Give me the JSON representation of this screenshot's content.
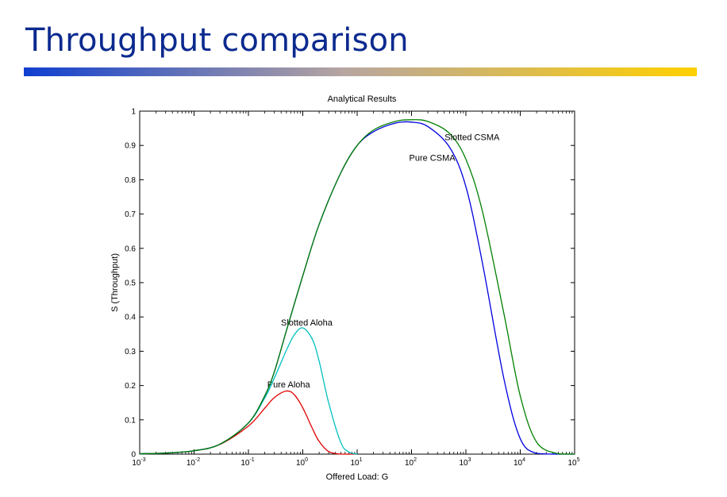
{
  "slide": {
    "title": "Throughput comparison",
    "bar_colors": [
      "#0f3fd0",
      "#b8a6a0",
      "#ffd000"
    ]
  },
  "chart_data": {
    "type": "line",
    "title": "Analytical Results",
    "xlabel": "Offered Load: G",
    "ylabel": "S (Throughput)",
    "x_scale": "log",
    "xlim": [
      0.001,
      100000
    ],
    "ylim": [
      0,
      1
    ],
    "x_ticks": [
      {
        "value": 0.001,
        "base": "10",
        "exp": "-3"
      },
      {
        "value": 0.01,
        "base": "10",
        "exp": "-2"
      },
      {
        "value": 0.1,
        "base": "10",
        "exp": "-1"
      },
      {
        "value": 1,
        "base": "10",
        "exp": "0"
      },
      {
        "value": 10,
        "base": "10",
        "exp": "1"
      },
      {
        "value": 100,
        "base": "10",
        "exp": "2"
      },
      {
        "value": 1000,
        "base": "10",
        "exp": "3"
      },
      {
        "value": 10000,
        "base": "10",
        "exp": "4"
      },
      {
        "value": 100000,
        "base": "10",
        "exp": "5"
      }
    ],
    "y_ticks": [
      {
        "value": 0,
        "label": "0"
      },
      {
        "value": 0.1,
        "label": "0.1"
      },
      {
        "value": 0.2,
        "label": "0.2"
      },
      {
        "value": 0.3,
        "label": "0.3"
      },
      {
        "value": 0.4,
        "label": "0.4"
      },
      {
        "value": 0.5,
        "label": "0.5"
      },
      {
        "value": 0.6,
        "label": "0.6"
      },
      {
        "value": 0.7,
        "label": "0.7"
      },
      {
        "value": 0.8,
        "label": "0.8"
      },
      {
        "value": 0.9,
        "label": "0.9"
      },
      {
        "value": 1,
        "label": "1"
      }
    ],
    "grid": false,
    "series": [
      {
        "name": "Pure Aloha",
        "color": "#e00000",
        "x": [
          0.001,
          0.003,
          0.01,
          0.03,
          0.1,
          0.2,
          0.3,
          0.5,
          0.7,
          1,
          1.5,
          2,
          3,
          5,
          7,
          10
        ],
        "y": [
          0.001,
          0.003,
          0.0098,
          0.0283,
          0.0819,
          0.134,
          0.165,
          0.184,
          0.173,
          0.135,
          0.075,
          0.037,
          0.0074,
          0,
          0,
          0
        ],
        "label": {
          "anchor_x": 0.55,
          "anchor_y": 0.195
        }
      },
      {
        "name": "Slotted Aloha",
        "color": "#00c0c0",
        "x": [
          0.001,
          0.003,
          0.01,
          0.03,
          0.1,
          0.2,
          0.3,
          0.5,
          0.7,
          1,
          1.5,
          2,
          3,
          5,
          7,
          10
        ],
        "y": [
          0.001,
          0.003,
          0.0099,
          0.0291,
          0.0905,
          0.164,
          0.222,
          0.303,
          0.348,
          0.368,
          0.335,
          0.271,
          0.149,
          0.034,
          0.0064,
          0
        ],
        "label": {
          "anchor_x": 1.18,
          "anchor_y": 0.375
        }
      },
      {
        "name": "Pure CSMA",
        "color": "#0000e0",
        "x": [
          0.001,
          0.003,
          0.01,
          0.03,
          0.1,
          0.2,
          0.3,
          0.5,
          1,
          2,
          5,
          10,
          20,
          50,
          100,
          200,
          500,
          1000,
          2000,
          5000,
          10000,
          20000,
          50000,
          100000
        ],
        "y": [
          0.001,
          0.003,
          0.0099,
          0.029,
          0.091,
          0.17,
          0.24,
          0.36,
          0.52,
          0.67,
          0.82,
          0.9,
          0.94,
          0.965,
          0.968,
          0.955,
          0.895,
          0.78,
          0.56,
          0.22,
          0.045,
          0.002,
          0,
          0
        ],
        "label": {
          "anchor_x": 240,
          "anchor_y": 0.855
        }
      },
      {
        "name": "Slotted CSMA",
        "color": "#008000",
        "x": [
          0.001,
          0.003,
          0.01,
          0.03,
          0.1,
          0.2,
          0.3,
          0.5,
          1,
          2,
          5,
          10,
          20,
          50,
          100,
          200,
          500,
          1000,
          2000,
          5000,
          10000,
          20000,
          50000,
          100000
        ],
        "y": [
          0.001,
          0.003,
          0.0099,
          0.029,
          0.091,
          0.17,
          0.24,
          0.36,
          0.52,
          0.67,
          0.82,
          0.9,
          0.945,
          0.97,
          0.975,
          0.97,
          0.935,
          0.86,
          0.71,
          0.41,
          0.17,
          0.035,
          0.001,
          0
        ],
        "label": {
          "anchor_x": 1300,
          "anchor_y": 0.915
        }
      }
    ]
  }
}
